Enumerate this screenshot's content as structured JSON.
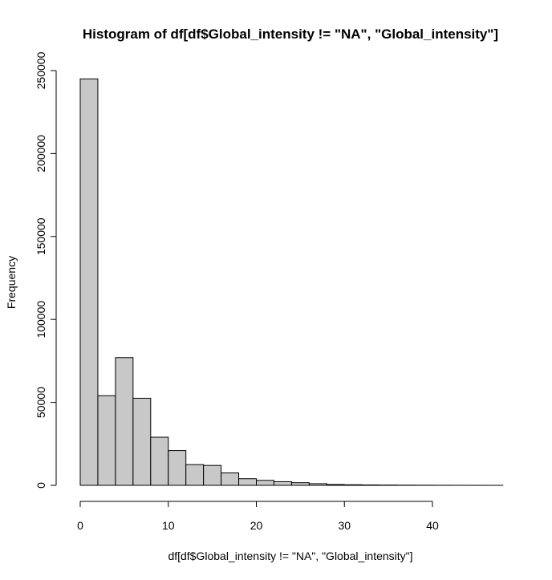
{
  "chart_data": {
    "type": "bar",
    "title": "Histogram of df[df$Global_intensity != \"NA\", \"Global_intensity\"]",
    "xlabel": "df[df$Global_intensity != \"NA\", \"Global_intensity\"]",
    "ylabel": "Frequency",
    "bin_width": 2,
    "bins": [
      {
        "x0": 0,
        "x1": 2,
        "count": 245000
      },
      {
        "x0": 2,
        "x1": 4,
        "count": 54000
      },
      {
        "x0": 4,
        "x1": 6,
        "count": 77000
      },
      {
        "x0": 6,
        "x1": 8,
        "count": 52500
      },
      {
        "x0": 8,
        "x1": 10,
        "count": 29000
      },
      {
        "x0": 10,
        "x1": 12,
        "count": 21000
      },
      {
        "x0": 12,
        "x1": 14,
        "count": 12500
      },
      {
        "x0": 14,
        "x1": 16,
        "count": 12000
      },
      {
        "x0": 16,
        "x1": 18,
        "count": 7500
      },
      {
        "x0": 18,
        "x1": 20,
        "count": 4000
      },
      {
        "x0": 20,
        "x1": 22,
        "count": 3000
      },
      {
        "x0": 22,
        "x1": 24,
        "count": 2200
      },
      {
        "x0": 24,
        "x1": 26,
        "count": 1600
      },
      {
        "x0": 26,
        "x1": 28,
        "count": 1000
      },
      {
        "x0": 28,
        "x1": 30,
        "count": 500
      },
      {
        "x0": 30,
        "x1": 32,
        "count": 350
      },
      {
        "x0": 32,
        "x1": 34,
        "count": 250
      },
      {
        "x0": 34,
        "x1": 36,
        "count": 180
      },
      {
        "x0": 36,
        "x1": 38,
        "count": 120
      },
      {
        "x0": 38,
        "x1": 40,
        "count": 80
      },
      {
        "x0": 40,
        "x1": 42,
        "count": 50
      },
      {
        "x0": 42,
        "x1": 44,
        "count": 30
      },
      {
        "x0": 44,
        "x1": 46,
        "count": 20
      },
      {
        "x0": 46,
        "x1": 48,
        "count": 10
      }
    ],
    "xlim": [
      0,
      48
    ],
    "ylim": [
      0,
      250000
    ],
    "x_ticks": [
      0,
      10,
      20,
      30,
      40
    ],
    "x_tick_labels": [
      "0",
      "10",
      "20",
      "30",
      "40"
    ],
    "y_ticks": [
      0,
      50000,
      100000,
      150000,
      200000,
      250000
    ],
    "y_tick_labels": [
      "0",
      "50000",
      "100000",
      "150000",
      "200000",
      "250000"
    ],
    "grid": false,
    "bar_fill_color": "#c8c8c8",
    "bar_edge_color": "#000000"
  }
}
